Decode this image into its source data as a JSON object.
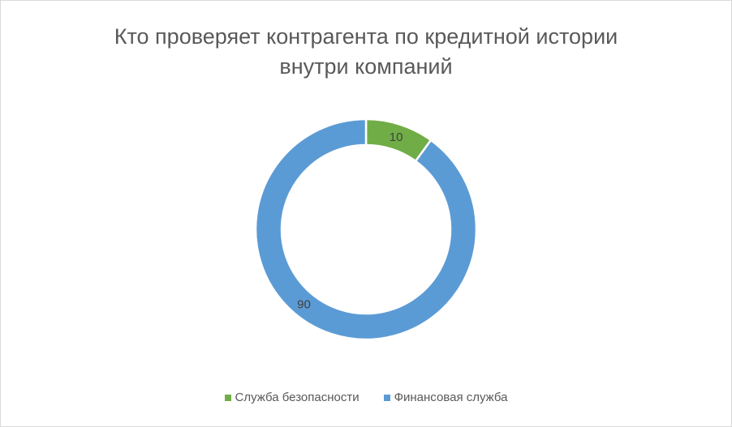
{
  "chart_data": {
    "type": "pie",
    "subtype": "doughnut",
    "title": [
      "Кто проверяет контрагента по кредитной истории",
      "внутри компаний"
    ],
    "categories": [
      "Служба безопасности",
      "Финансовая служба"
    ],
    "values": [
      10,
      90
    ],
    "data_labels": [
      "10",
      "90"
    ],
    "colors": [
      "#70ad47",
      "#5b9bd5"
    ],
    "legend_position": "bottom"
  }
}
